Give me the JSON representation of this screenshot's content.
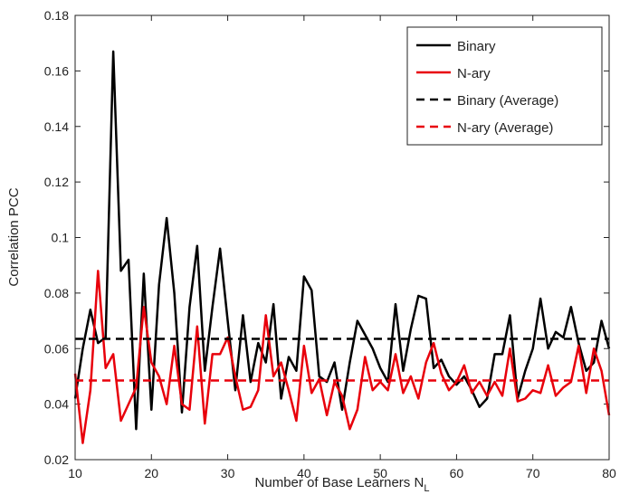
{
  "chart_data": {
    "type": "line",
    "xlabel": {
      "text": "Number of Base Learners N",
      "subscript": "L"
    },
    "ylabel": "Correlation PCC",
    "x": [
      10,
      11,
      12,
      13,
      14,
      15,
      16,
      17,
      18,
      19,
      20,
      21,
      22,
      23,
      24,
      25,
      26,
      27,
      28,
      29,
      30,
      31,
      32,
      33,
      34,
      35,
      36,
      37,
      38,
      39,
      40,
      41,
      42,
      43,
      44,
      45,
      46,
      47,
      48,
      49,
      50,
      51,
      52,
      53,
      54,
      55,
      56,
      57,
      58,
      59,
      60,
      61,
      62,
      63,
      64,
      65,
      66,
      67,
      68,
      69,
      70,
      71,
      72,
      73,
      74,
      75,
      76,
      77,
      78,
      79,
      80
    ],
    "series": [
      {
        "name": "Binary",
        "color": "#000000",
        "dashed": false,
        "values": [
          0.042,
          0.06,
          0.074,
          0.062,
          0.064,
          0.167,
          0.088,
          0.092,
          0.031,
          0.087,
          0.038,
          0.083,
          0.107,
          0.08,
          0.037,
          0.075,
          0.097,
          0.052,
          0.075,
          0.096,
          0.07,
          0.045,
          0.072,
          0.048,
          0.062,
          0.055,
          0.076,
          0.042,
          0.057,
          0.052,
          0.086,
          0.081,
          0.05,
          0.048,
          0.055,
          0.038,
          0.055,
          0.07,
          0.065,
          0.06,
          0.053,
          0.048,
          0.076,
          0.052,
          0.067,
          0.079,
          0.078,
          0.053,
          0.056,
          0.05,
          0.047,
          0.05,
          0.045,
          0.039,
          0.042,
          0.058,
          0.058,
          0.072,
          0.042,
          0.052,
          0.06,
          0.078,
          0.06,
          0.066,
          0.064,
          0.075,
          0.062,
          0.052,
          0.055,
          0.07,
          0.06
        ]
      },
      {
        "name": "N-ary",
        "color": "#e8000b",
        "dashed": false,
        "values": [
          0.051,
          0.026,
          0.045,
          0.088,
          0.053,
          0.058,
          0.034,
          0.04,
          0.046,
          0.075,
          0.055,
          0.05,
          0.04,
          0.061,
          0.04,
          0.038,
          0.068,
          0.033,
          0.058,
          0.058,
          0.064,
          0.05,
          0.038,
          0.039,
          0.045,
          0.072,
          0.05,
          0.055,
          0.045,
          0.034,
          0.061,
          0.044,
          0.049,
          0.036,
          0.048,
          0.043,
          0.031,
          0.038,
          0.057,
          0.045,
          0.048,
          0.045,
          0.058,
          0.044,
          0.05,
          0.042,
          0.055,
          0.062,
          0.051,
          0.045,
          0.048,
          0.054,
          0.044,
          0.048,
          0.043,
          0.048,
          0.043,
          0.06,
          0.041,
          0.042,
          0.045,
          0.044,
          0.054,
          0.043,
          0.046,
          0.048,
          0.061,
          0.044,
          0.06,
          0.052,
          0.036
        ]
      },
      {
        "name": "Binary (Average)",
        "color": "#000000",
        "dashed": true,
        "average": 0.0635
      },
      {
        "name": "N-ary (Average)",
        "color": "#e8000b",
        "dashed": true,
        "average": 0.0485
      }
    ],
    "xlim": [
      10,
      80
    ],
    "xticks": [
      10,
      20,
      30,
      40,
      50,
      60,
      70,
      80
    ],
    "ylim": [
      0.02,
      0.18
    ],
    "yticks": [
      0.02,
      0.04,
      0.06,
      0.08,
      0.1,
      0.12,
      0.14,
      0.16,
      0.18
    ],
    "grid": false,
    "legend": "top-right"
  }
}
